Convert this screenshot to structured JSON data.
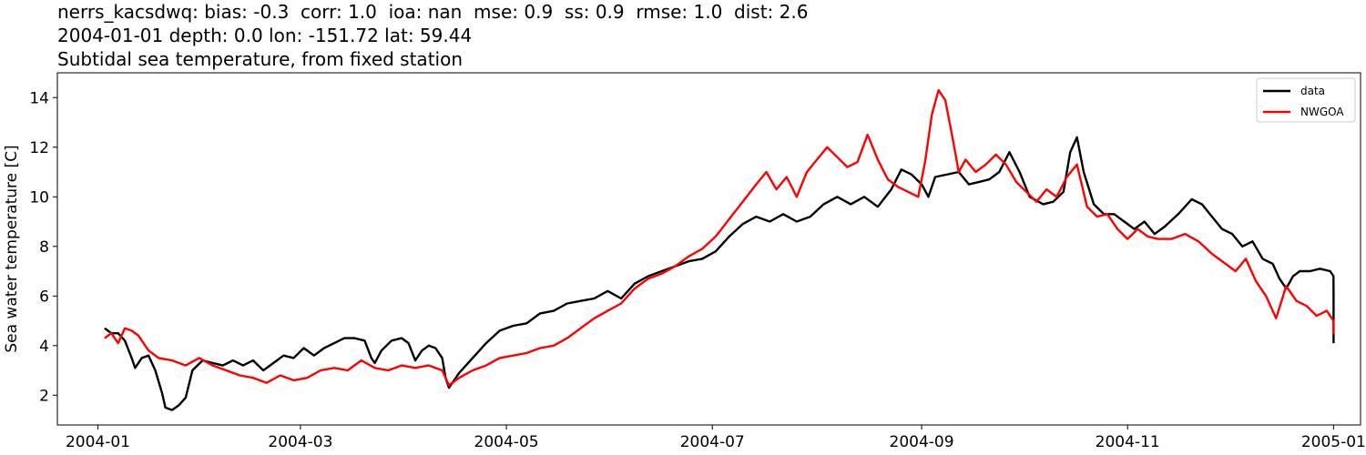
{
  "titles": {
    "line1": "nerrs_kacsdwq: bias: -0.3  corr: 1.0  ioa: nan  mse: 0.9  ss: 0.9  rmse: 1.0  dist: 2.6",
    "line2": "2004-01-01 depth: 0.0 lon: -151.72 lat: 59.44",
    "line3": "Subtidal sea temperature, from fixed station"
  },
  "chart_data": {
    "type": "line",
    "ylabel": "Sea water temperature [C]",
    "xlabel": "",
    "xlim": [
      "2003-12-20",
      "2005-01-09"
    ],
    "ylim": [
      0.8,
      15.0
    ],
    "yticks": [
      2,
      4,
      6,
      8,
      10,
      12,
      14
    ],
    "xticks": [
      "2004-01",
      "2004-03",
      "2004-05",
      "2004-07",
      "2004-09",
      "2004-11",
      "2005-01"
    ],
    "legend_position": "top-right",
    "grid": false,
    "series": [
      {
        "name": "data",
        "color": "#000000",
        "points": [
          [
            "2004-01-03",
            4.7
          ],
          [
            "2004-01-05",
            4.5
          ],
          [
            "2004-01-07",
            4.5
          ],
          [
            "2004-01-09",
            4.2
          ],
          [
            "2004-01-11",
            3.5
          ],
          [
            "2004-01-12",
            3.1
          ],
          [
            "2004-01-14",
            3.5
          ],
          [
            "2004-01-16",
            3.6
          ],
          [
            "2004-01-18",
            3.0
          ],
          [
            "2004-01-20",
            2.1
          ],
          [
            "2004-01-21",
            1.5
          ],
          [
            "2004-01-23",
            1.4
          ],
          [
            "2004-01-25",
            1.6
          ],
          [
            "2004-01-27",
            1.9
          ],
          [
            "2004-01-29",
            3.0
          ],
          [
            "2004-02-01",
            3.4
          ],
          [
            "2004-02-04",
            3.3
          ],
          [
            "2004-02-07",
            3.2
          ],
          [
            "2004-02-10",
            3.4
          ],
          [
            "2004-02-13",
            3.2
          ],
          [
            "2004-02-16",
            3.4
          ],
          [
            "2004-02-19",
            3.0
          ],
          [
            "2004-02-22",
            3.3
          ],
          [
            "2004-02-25",
            3.6
          ],
          [
            "2004-02-28",
            3.5
          ],
          [
            "2004-03-02",
            3.9
          ],
          [
            "2004-03-05",
            3.6
          ],
          [
            "2004-03-08",
            3.9
          ],
          [
            "2004-03-11",
            4.1
          ],
          [
            "2004-03-14",
            4.3
          ],
          [
            "2004-03-17",
            4.3
          ],
          [
            "2004-03-20",
            4.2
          ],
          [
            "2004-03-22",
            3.5
          ],
          [
            "2004-03-23",
            3.3
          ],
          [
            "2004-03-25",
            3.8
          ],
          [
            "2004-03-28",
            4.2
          ],
          [
            "2004-03-31",
            4.3
          ],
          [
            "2004-04-02",
            4.1
          ],
          [
            "2004-04-04",
            3.4
          ],
          [
            "2004-04-06",
            3.8
          ],
          [
            "2004-04-08",
            4.0
          ],
          [
            "2004-04-10",
            3.9
          ],
          [
            "2004-04-12",
            3.5
          ],
          [
            "2004-04-13",
            2.7
          ],
          [
            "2004-04-14",
            2.3
          ],
          [
            "2004-04-17",
            2.9
          ],
          [
            "2004-04-21",
            3.5
          ],
          [
            "2004-04-25",
            4.1
          ],
          [
            "2004-04-29",
            4.6
          ],
          [
            "2004-05-03",
            4.8
          ],
          [
            "2004-05-07",
            4.9
          ],
          [
            "2004-05-11",
            5.3
          ],
          [
            "2004-05-15",
            5.4
          ],
          [
            "2004-05-19",
            5.7
          ],
          [
            "2004-05-23",
            5.8
          ],
          [
            "2004-05-27",
            5.9
          ],
          [
            "2004-05-31",
            6.2
          ],
          [
            "2004-06-04",
            5.9
          ],
          [
            "2004-06-08",
            6.5
          ],
          [
            "2004-06-12",
            6.8
          ],
          [
            "2004-06-16",
            7.0
          ],
          [
            "2004-06-20",
            7.2
          ],
          [
            "2004-06-24",
            7.4
          ],
          [
            "2004-06-28",
            7.5
          ],
          [
            "2004-07-02",
            7.8
          ],
          [
            "2004-07-06",
            8.4
          ],
          [
            "2004-07-10",
            8.9
          ],
          [
            "2004-07-14",
            9.2
          ],
          [
            "2004-07-18",
            9.0
          ],
          [
            "2004-07-22",
            9.3
          ],
          [
            "2004-07-26",
            9.0
          ],
          [
            "2004-07-30",
            9.2
          ],
          [
            "2004-08-03",
            9.7
          ],
          [
            "2004-08-07",
            10.0
          ],
          [
            "2004-08-11",
            9.7
          ],
          [
            "2004-08-15",
            10.0
          ],
          [
            "2004-08-19",
            9.6
          ],
          [
            "2004-08-23",
            10.3
          ],
          [
            "2004-08-26",
            11.1
          ],
          [
            "2004-08-29",
            10.9
          ],
          [
            "2004-09-01",
            10.5
          ],
          [
            "2004-09-03",
            10.0
          ],
          [
            "2004-09-05",
            10.8
          ],
          [
            "2004-09-12",
            11.0
          ],
          [
            "2004-09-15",
            10.5
          ],
          [
            "2004-09-18",
            10.6
          ],
          [
            "2004-09-21",
            10.7
          ],
          [
            "2004-09-24",
            11.0
          ],
          [
            "2004-09-27",
            11.8
          ],
          [
            "2004-09-30",
            11.0
          ],
          [
            "2004-10-03",
            10.0
          ],
          [
            "2004-10-07",
            9.7
          ],
          [
            "2004-10-10",
            9.8
          ],
          [
            "2004-10-13",
            10.2
          ],
          [
            "2004-10-15",
            11.8
          ],
          [
            "2004-10-17",
            12.4
          ],
          [
            "2004-10-19",
            11.0
          ],
          [
            "2004-10-22",
            9.7
          ],
          [
            "2004-10-25",
            9.3
          ],
          [
            "2004-10-28",
            9.3
          ],
          [
            "2004-10-31",
            9.0
          ],
          [
            "2004-11-03",
            8.7
          ],
          [
            "2004-11-06",
            9.0
          ],
          [
            "2004-11-09",
            8.5
          ],
          [
            "2004-11-12",
            8.8
          ],
          [
            "2004-11-16",
            9.3
          ],
          [
            "2004-11-20",
            9.9
          ],
          [
            "2004-11-23",
            9.7
          ],
          [
            "2004-11-26",
            9.2
          ],
          [
            "2004-11-29",
            8.7
          ],
          [
            "2004-12-02",
            8.5
          ],
          [
            "2004-12-05",
            8.0
          ],
          [
            "2004-12-08",
            8.2
          ],
          [
            "2004-12-11",
            7.5
          ],
          [
            "2004-12-14",
            7.3
          ],
          [
            "2004-12-16",
            6.7
          ],
          [
            "2004-12-18",
            6.3
          ],
          [
            "2004-12-20",
            6.8
          ],
          [
            "2004-12-22",
            7.0
          ],
          [
            "2004-12-25",
            7.0
          ],
          [
            "2004-12-28",
            7.1
          ],
          [
            "2004-12-31",
            7.0
          ],
          [
            "2005-01-01",
            6.8
          ],
          [
            "2005-01-01",
            5.7
          ],
          [
            "2005-01-01",
            6.3
          ],
          [
            "2005-01-01",
            6.2
          ],
          [
            "2005-01-01",
            5.4
          ],
          [
            "2005-01-01",
            4.2
          ],
          [
            "2005-01-01",
            4.1
          ]
        ]
      },
      {
        "name": "NWGOA",
        "color": "#ff0000",
        "points": [
          [
            "2004-01-03",
            4.3
          ],
          [
            "2004-01-05",
            4.5
          ],
          [
            "2004-01-07",
            4.1
          ],
          [
            "2004-01-09",
            4.7
          ],
          [
            "2004-01-11",
            4.6
          ],
          [
            "2004-01-13",
            4.4
          ],
          [
            "2004-01-16",
            3.8
          ],
          [
            "2004-01-19",
            3.5
          ],
          [
            "2004-01-23",
            3.4
          ],
          [
            "2004-01-27",
            3.2
          ],
          [
            "2004-01-31",
            3.5
          ],
          [
            "2004-02-04",
            3.2
          ],
          [
            "2004-02-08",
            3.0
          ],
          [
            "2004-02-12",
            2.8
          ],
          [
            "2004-02-16",
            2.7
          ],
          [
            "2004-02-20",
            2.5
          ],
          [
            "2004-02-24",
            2.8
          ],
          [
            "2004-02-28",
            2.6
          ],
          [
            "2004-03-03",
            2.7
          ],
          [
            "2004-03-07",
            3.0
          ],
          [
            "2004-03-11",
            3.1
          ],
          [
            "2004-03-15",
            3.0
          ],
          [
            "2004-03-19",
            3.4
          ],
          [
            "2004-03-23",
            3.1
          ],
          [
            "2004-03-27",
            3.0
          ],
          [
            "2004-03-31",
            3.2
          ],
          [
            "2004-04-04",
            3.1
          ],
          [
            "2004-04-08",
            3.2
          ],
          [
            "2004-04-12",
            3.0
          ],
          [
            "2004-04-14",
            2.4
          ],
          [
            "2004-04-17",
            2.7
          ],
          [
            "2004-04-21",
            3.0
          ],
          [
            "2004-04-25",
            3.2
          ],
          [
            "2004-04-29",
            3.5
          ],
          [
            "2004-05-03",
            3.6
          ],
          [
            "2004-05-07",
            3.7
          ],
          [
            "2004-05-11",
            3.9
          ],
          [
            "2004-05-15",
            4.0
          ],
          [
            "2004-05-19",
            4.3
          ],
          [
            "2004-05-23",
            4.7
          ],
          [
            "2004-05-27",
            5.1
          ],
          [
            "2004-05-31",
            5.4
          ],
          [
            "2004-06-04",
            5.7
          ],
          [
            "2004-06-08",
            6.3
          ],
          [
            "2004-06-12",
            6.7
          ],
          [
            "2004-06-16",
            6.9
          ],
          [
            "2004-06-20",
            7.2
          ],
          [
            "2004-06-24",
            7.6
          ],
          [
            "2004-06-28",
            7.9
          ],
          [
            "2004-07-02",
            8.4
          ],
          [
            "2004-07-06",
            9.1
          ],
          [
            "2004-07-10",
            9.8
          ],
          [
            "2004-07-14",
            10.5
          ],
          [
            "2004-07-17",
            11.0
          ],
          [
            "2004-07-20",
            10.3
          ],
          [
            "2004-07-23",
            10.8
          ],
          [
            "2004-07-26",
            10.0
          ],
          [
            "2004-07-29",
            11.0
          ],
          [
            "2004-08-01",
            11.5
          ],
          [
            "2004-08-04",
            12.0
          ],
          [
            "2004-08-07",
            11.6
          ],
          [
            "2004-08-10",
            11.2
          ],
          [
            "2004-08-13",
            11.4
          ],
          [
            "2004-08-16",
            12.5
          ],
          [
            "2004-08-19",
            11.5
          ],
          [
            "2004-08-22",
            10.7
          ],
          [
            "2004-08-25",
            10.4
          ],
          [
            "2004-08-28",
            10.2
          ],
          [
            "2004-08-31",
            10.0
          ],
          [
            "2004-09-02",
            11.4
          ],
          [
            "2004-09-04",
            13.3
          ],
          [
            "2004-09-06",
            14.3
          ],
          [
            "2004-09-08",
            13.9
          ],
          [
            "2004-09-10",
            12.5
          ],
          [
            "2004-09-12",
            11.0
          ],
          [
            "2004-09-14",
            11.5
          ],
          [
            "2004-09-17",
            11.0
          ],
          [
            "2004-09-20",
            11.3
          ],
          [
            "2004-09-23",
            11.7
          ],
          [
            "2004-09-26",
            11.3
          ],
          [
            "2004-09-29",
            10.6
          ],
          [
            "2004-10-02",
            10.2
          ],
          [
            "2004-10-05",
            9.8
          ],
          [
            "2004-10-08",
            10.3
          ],
          [
            "2004-10-11",
            10.0
          ],
          [
            "2004-10-14",
            10.8
          ],
          [
            "2004-10-17",
            11.3
          ],
          [
            "2004-10-20",
            9.6
          ],
          [
            "2004-10-23",
            9.2
          ],
          [
            "2004-10-26",
            9.3
          ],
          [
            "2004-10-29",
            8.7
          ],
          [
            "2004-11-01",
            8.3
          ],
          [
            "2004-11-04",
            8.7
          ],
          [
            "2004-11-07",
            8.4
          ],
          [
            "2004-11-10",
            8.3
          ],
          [
            "2004-11-14",
            8.3
          ],
          [
            "2004-11-18",
            8.5
          ],
          [
            "2004-11-22",
            8.2
          ],
          [
            "2004-11-26",
            7.7
          ],
          [
            "2004-11-30",
            7.3
          ],
          [
            "2004-12-03",
            7.0
          ],
          [
            "2004-12-06",
            7.5
          ],
          [
            "2004-12-09",
            6.6
          ],
          [
            "2004-12-12",
            6.0
          ],
          [
            "2004-12-15",
            5.1
          ],
          [
            "2004-12-18",
            6.4
          ],
          [
            "2004-12-21",
            5.8
          ],
          [
            "2004-12-24",
            5.6
          ],
          [
            "2004-12-27",
            5.2
          ],
          [
            "2004-12-30",
            5.4
          ],
          [
            "2005-01-01",
            5.0
          ],
          [
            "2005-01-01",
            4.9
          ],
          [
            "2005-01-01",
            4.5
          ],
          [
            "2005-01-01",
            4.7
          ]
        ]
      }
    ]
  }
}
